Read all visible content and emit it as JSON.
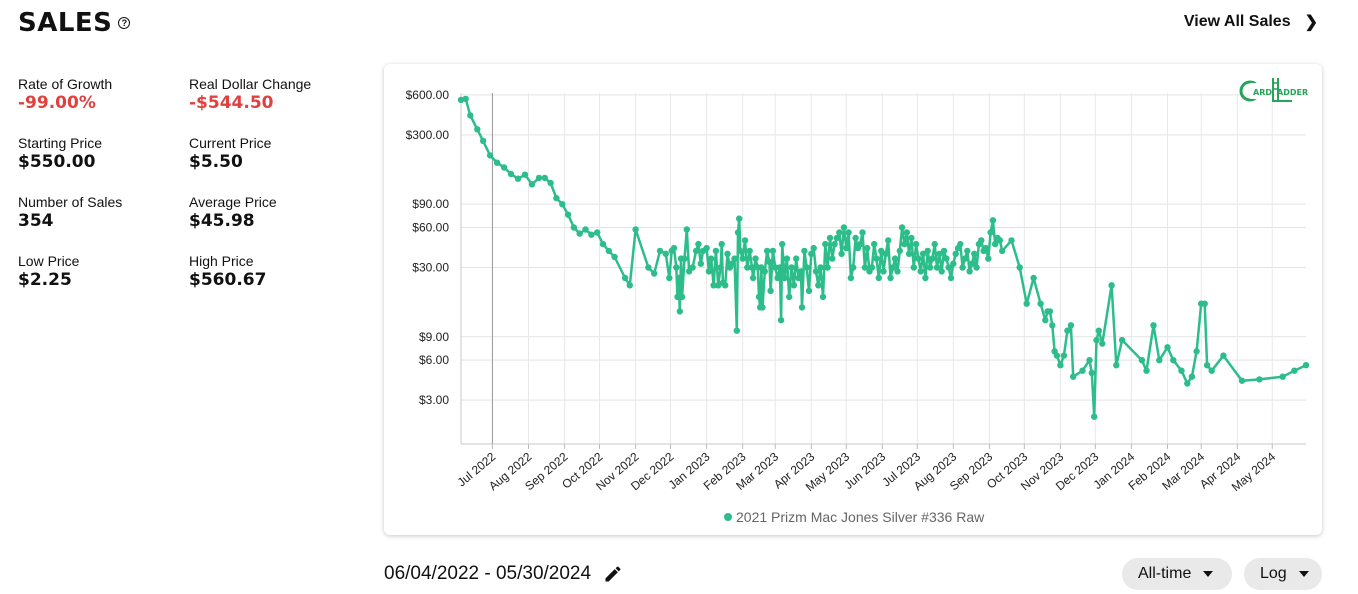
{
  "header": {
    "title": "SALES",
    "help_icon": "?",
    "view_all_label": "View All Sales"
  },
  "stats": [
    {
      "label": "Rate of Growth",
      "value": "-99.00%",
      "color": "#e0413f"
    },
    {
      "label": "Real Dollar Change",
      "value": "-$544.50",
      "color": "#e0413f"
    },
    {
      "label": "Starting Price",
      "value": "$550.00"
    },
    {
      "label": "Current Price",
      "value": "$5.50"
    },
    {
      "label": "Number of Sales",
      "value": "354"
    },
    {
      "label": "Average Price",
      "value": "$45.98"
    },
    {
      "label": "Low Price",
      "value": "$2.25"
    },
    {
      "label": "High Price",
      "value": "$560.67"
    }
  ],
  "footer": {
    "date_range": "06/04/2022 - 05/30/2024",
    "range_select": "All-time",
    "scale_select": "Log"
  },
  "logo": {
    "text_left": "ARD",
    "text_right": "ADDER",
    "color": "#27a35a"
  },
  "chart_data": {
    "type": "line",
    "scale": "log",
    "series_color": "#2dbd8b",
    "ylim": [
      1.4,
      620
    ],
    "y_ticks": [
      {
        "value": 600,
        "label": "$600.00"
      },
      {
        "value": 300,
        "label": "$300.00"
      },
      {
        "value": 90,
        "label": "$90.00"
      },
      {
        "value": 60,
        "label": "$60.00"
      },
      {
        "value": 30,
        "label": "$30.00"
      },
      {
        "value": 9,
        "label": "$9.00"
      },
      {
        "value": 6,
        "label": "$6.00"
      },
      {
        "value": 3,
        "label": "$3.00"
      }
    ],
    "x_ticks": [
      "Jul 2022",
      "Aug 2022",
      "Sep 2022",
      "Oct 2022",
      "Nov 2022",
      "Dec 2022",
      "Jan 2023",
      "Feb 2023",
      "Mar 2023",
      "Apr 2023",
      "May 2023",
      "Jun 2023",
      "Jul 2023",
      "Aug 2023",
      "Sep 2023",
      "Oct 2023",
      "Nov 2023",
      "Dec 2023",
      "Jan 2024",
      "Feb 2024",
      "Mar 2024",
      "Apr 2024",
      "May 2024"
    ],
    "legend": [
      "2021 Prizm Mac Jones Silver #336 Raw"
    ],
    "series": [
      {
        "name": "2021 Prizm Mac Jones Silver #336 Raw",
        "points": [
          [
            "2022-06-04",
            550
          ],
          [
            "2022-06-08",
            560
          ],
          [
            "2022-06-12",
            420
          ],
          [
            "2022-06-18",
            330
          ],
          [
            "2022-06-23",
            270
          ],
          [
            "2022-06-29",
            210
          ],
          [
            "2022-07-05",
            185
          ],
          [
            "2022-07-11",
            170
          ],
          [
            "2022-07-17",
            152
          ],
          [
            "2022-07-23",
            140
          ],
          [
            "2022-07-29",
            150
          ],
          [
            "2022-08-04",
            127
          ],
          [
            "2022-08-10",
            142
          ],
          [
            "2022-08-15",
            142
          ],
          [
            "2022-08-20",
            130
          ],
          [
            "2022-08-25",
            100
          ],
          [
            "2022-08-30",
            90
          ],
          [
            "2022-09-04",
            75
          ],
          [
            "2022-09-09",
            60
          ],
          [
            "2022-09-14",
            54
          ],
          [
            "2022-09-19",
            58
          ],
          [
            "2022-09-24",
            53
          ],
          [
            "2022-09-29",
            55
          ],
          [
            "2022-10-04",
            45
          ],
          [
            "2022-10-09",
            40
          ],
          [
            "2022-10-14",
            36
          ],
          [
            "2022-10-23",
            25
          ],
          [
            "2022-10-27",
            22
          ],
          [
            "2022-11-01",
            58
          ],
          [
            "2022-11-12",
            30
          ],
          [
            "2022-11-17",
            27
          ],
          [
            "2022-11-22",
            40
          ],
          [
            "2022-11-27",
            38
          ],
          [
            "2022-11-30",
            25
          ],
          [
            "2022-12-02",
            40
          ],
          [
            "2022-12-04",
            42
          ],
          [
            "2022-12-06",
            30
          ],
          [
            "2022-12-07",
            18
          ],
          [
            "2022-12-08",
            25
          ],
          [
            "2022-12-09",
            14
          ],
          [
            "2022-12-10",
            35
          ],
          [
            "2022-12-11",
            18
          ],
          [
            "2022-12-13",
            35
          ],
          [
            "2022-12-15",
            58
          ],
          [
            "2022-12-17",
            28
          ],
          [
            "2022-12-20",
            30
          ],
          [
            "2022-12-23",
            40
          ],
          [
            "2022-12-25",
            45
          ],
          [
            "2022-12-27",
            32
          ],
          [
            "2022-12-29",
            40
          ],
          [
            "2023-01-01",
            42
          ],
          [
            "2023-01-03",
            28
          ],
          [
            "2023-01-05",
            35
          ],
          [
            "2023-01-07",
            22
          ],
          [
            "2023-01-09",
            40
          ],
          [
            "2023-01-11",
            22
          ],
          [
            "2023-01-13",
            30
          ],
          [
            "2023-01-14",
            45
          ],
          [
            "2023-01-15",
            23
          ],
          [
            "2023-01-17",
            22
          ],
          [
            "2023-01-19",
            38
          ],
          [
            "2023-01-21",
            30
          ],
          [
            "2023-01-23",
            32
          ],
          [
            "2023-01-25",
            35
          ],
          [
            "2023-01-27",
            10
          ],
          [
            "2023-01-28",
            55
          ],
          [
            "2023-01-29",
            70
          ],
          [
            "2023-01-30",
            40
          ],
          [
            "2023-02-01",
            35
          ],
          [
            "2023-02-03",
            48
          ],
          [
            "2023-02-05",
            30
          ],
          [
            "2023-02-07",
            40
          ],
          [
            "2023-02-09",
            30
          ],
          [
            "2023-02-10",
            25
          ],
          [
            "2023-02-12",
            35
          ],
          [
            "2023-02-14",
            30
          ],
          [
            "2023-02-15",
            18
          ],
          [
            "2023-02-16",
            15
          ],
          [
            "2023-02-17",
            30
          ],
          [
            "2023-02-18",
            15
          ],
          [
            "2023-02-20",
            28
          ],
          [
            "2023-02-22",
            40
          ],
          [
            "2023-02-24",
            33
          ],
          [
            "2023-02-25",
            20
          ],
          [
            "2023-02-27",
            40
          ],
          [
            "2023-03-01",
            30
          ],
          [
            "2023-03-03",
            25
          ],
          [
            "2023-03-05",
            30
          ],
          [
            "2023-03-06",
            12
          ],
          [
            "2023-03-07",
            45
          ],
          [
            "2023-03-09",
            25
          ],
          [
            "2023-03-11",
            35
          ],
          [
            "2023-03-13",
            18
          ],
          [
            "2023-03-15",
            30
          ],
          [
            "2023-03-17",
            22
          ],
          [
            "2023-03-19",
            35
          ],
          [
            "2023-03-21",
            25
          ],
          [
            "2023-03-23",
            28
          ],
          [
            "2023-03-24",
            15
          ],
          [
            "2023-03-26",
            40
          ],
          [
            "2023-03-28",
            30
          ],
          [
            "2023-03-30",
            20
          ],
          [
            "2023-04-01",
            38
          ],
          [
            "2023-04-03",
            42
          ],
          [
            "2023-04-05",
            28
          ],
          [
            "2023-04-07",
            22
          ],
          [
            "2023-04-09",
            30
          ],
          [
            "2023-04-11",
            18
          ],
          [
            "2023-04-13",
            45
          ],
          [
            "2023-04-15",
            30
          ],
          [
            "2023-04-17",
            50
          ],
          [
            "2023-04-19",
            35
          ],
          [
            "2023-04-21",
            45
          ],
          [
            "2023-04-23",
            50
          ],
          [
            "2023-04-25",
            55
          ],
          [
            "2023-04-27",
            38
          ],
          [
            "2023-04-29",
            60
          ],
          [
            "2023-05-01",
            42
          ],
          [
            "2023-05-03",
            55
          ],
          [
            "2023-05-05",
            25
          ],
          [
            "2023-05-07",
            30
          ],
          [
            "2023-05-09",
            50
          ],
          [
            "2023-05-11",
            42
          ],
          [
            "2023-05-13",
            45
          ],
          [
            "2023-05-15",
            55
          ],
          [
            "2023-05-17",
            30
          ],
          [
            "2023-05-19",
            42
          ],
          [
            "2023-05-21",
            28
          ],
          [
            "2023-05-23",
            30
          ],
          [
            "2023-05-25",
            45
          ],
          [
            "2023-05-27",
            35
          ],
          [
            "2023-05-29",
            25
          ],
          [
            "2023-05-31",
            40
          ],
          [
            "2023-06-02",
            28
          ],
          [
            "2023-06-04",
            38
          ],
          [
            "2023-06-06",
            48
          ],
          [
            "2023-06-08",
            25
          ],
          [
            "2023-06-10",
            30
          ],
          [
            "2023-06-12",
            35
          ],
          [
            "2023-06-14",
            28
          ],
          [
            "2023-06-16",
            40
          ],
          [
            "2023-06-18",
            60
          ],
          [
            "2023-06-20",
            45
          ],
          [
            "2023-06-22",
            55
          ],
          [
            "2023-06-24",
            38
          ],
          [
            "2023-06-26",
            50
          ],
          [
            "2023-06-28",
            30
          ],
          [
            "2023-06-30",
            45
          ],
          [
            "2023-07-02",
            35
          ],
          [
            "2023-07-04",
            28
          ],
          [
            "2023-07-06",
            38
          ],
          [
            "2023-07-08",
            25
          ],
          [
            "2023-07-10",
            40
          ],
          [
            "2023-07-12",
            30
          ],
          [
            "2023-07-14",
            35
          ],
          [
            "2023-07-16",
            45
          ],
          [
            "2023-07-18",
            30
          ],
          [
            "2023-07-20",
            38
          ],
          [
            "2023-07-22",
            28
          ],
          [
            "2023-07-24",
            40
          ],
          [
            "2023-07-26",
            35
          ],
          [
            "2023-07-28",
            30
          ],
          [
            "2023-07-30",
            25
          ],
          [
            "2023-08-01",
            32
          ],
          [
            "2023-08-03",
            38
          ],
          [
            "2023-08-05",
            42
          ],
          [
            "2023-08-07",
            45
          ],
          [
            "2023-08-09",
            30
          ],
          [
            "2023-08-11",
            35
          ],
          [
            "2023-08-13",
            40
          ],
          [
            "2023-08-15",
            28
          ],
          [
            "2023-08-17",
            32
          ],
          [
            "2023-08-19",
            38
          ],
          [
            "2023-08-21",
            30
          ],
          [
            "2023-08-23",
            45
          ],
          [
            "2023-08-25",
            48
          ],
          [
            "2023-08-27",
            40
          ],
          [
            "2023-08-29",
            42
          ],
          [
            "2023-08-31",
            35
          ],
          [
            "2023-09-02",
            55
          ],
          [
            "2023-09-04",
            68
          ],
          [
            "2023-09-06",
            45
          ],
          [
            "2023-09-08",
            50
          ],
          [
            "2023-09-10",
            48
          ],
          [
            "2023-09-12",
            40
          ],
          [
            "2023-09-20",
            48
          ],
          [
            "2023-09-27",
            30
          ],
          [
            "2023-10-03",
            16
          ],
          [
            "2023-10-09",
            25
          ],
          [
            "2023-10-15",
            16
          ],
          [
            "2023-10-19",
            12
          ],
          [
            "2023-10-21",
            14
          ],
          [
            "2023-10-23",
            14
          ],
          [
            "2023-10-25",
            11
          ],
          [
            "2023-10-27",
            7
          ],
          [
            "2023-10-29",
            6.5
          ],
          [
            "2023-11-01",
            5.5
          ],
          [
            "2023-11-04",
            6.5
          ],
          [
            "2023-11-07",
            10
          ],
          [
            "2023-11-10",
            11
          ],
          [
            "2023-11-12",
            4.5
          ],
          [
            "2023-11-20",
            5
          ],
          [
            "2023-11-26",
            6
          ],
          [
            "2023-11-28",
            4.8
          ],
          [
            "2023-11-30",
            2.25
          ],
          [
            "2023-12-02",
            8.5
          ],
          [
            "2023-12-04",
            10
          ],
          [
            "2023-12-07",
            8
          ],
          [
            "2023-12-15",
            22
          ],
          [
            "2023-12-19",
            5.5
          ],
          [
            "2023-12-24",
            8.5
          ],
          [
            "2024-01-10",
            6
          ],
          [
            "2024-01-14",
            5
          ],
          [
            "2024-01-20",
            11
          ],
          [
            "2024-01-25",
            6
          ],
          [
            "2024-02-01",
            7.5
          ],
          [
            "2024-02-06",
            6
          ],
          [
            "2024-02-13",
            5
          ],
          [
            "2024-02-18",
            4
          ],
          [
            "2024-02-22",
            4.5
          ],
          [
            "2024-02-26",
            7
          ],
          [
            "2024-03-01",
            16
          ],
          [
            "2024-03-04",
            16
          ],
          [
            "2024-03-06",
            5.5
          ],
          [
            "2024-03-10",
            5
          ],
          [
            "2024-03-20",
            6.5
          ],
          [
            "2024-04-05",
            4.2
          ],
          [
            "2024-04-20",
            4.3
          ],
          [
            "2024-05-10",
            4.5
          ],
          [
            "2024-05-20",
            5
          ],
          [
            "2024-05-30",
            5.5
          ]
        ]
      }
    ]
  }
}
